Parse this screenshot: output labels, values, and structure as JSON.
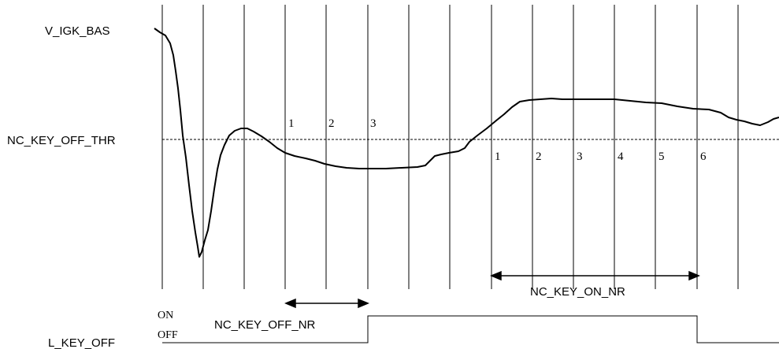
{
  "labels": {
    "v_igk_bas": "V_IGK_BAS",
    "threshold": "NC_KEY_OFF_THR",
    "key_off_signal": "L_KEY_OFF",
    "on": "ON",
    "off": "OFF",
    "key_off_nr": "NC_KEY_OFF_NR",
    "key_on_nr": "NC_KEY_ON_NR"
  },
  "off_counter_ticks": [
    "1",
    "2",
    "3"
  ],
  "on_counter_ticks": [
    "1",
    "2",
    "3",
    "4",
    "5",
    "6"
  ]
}
